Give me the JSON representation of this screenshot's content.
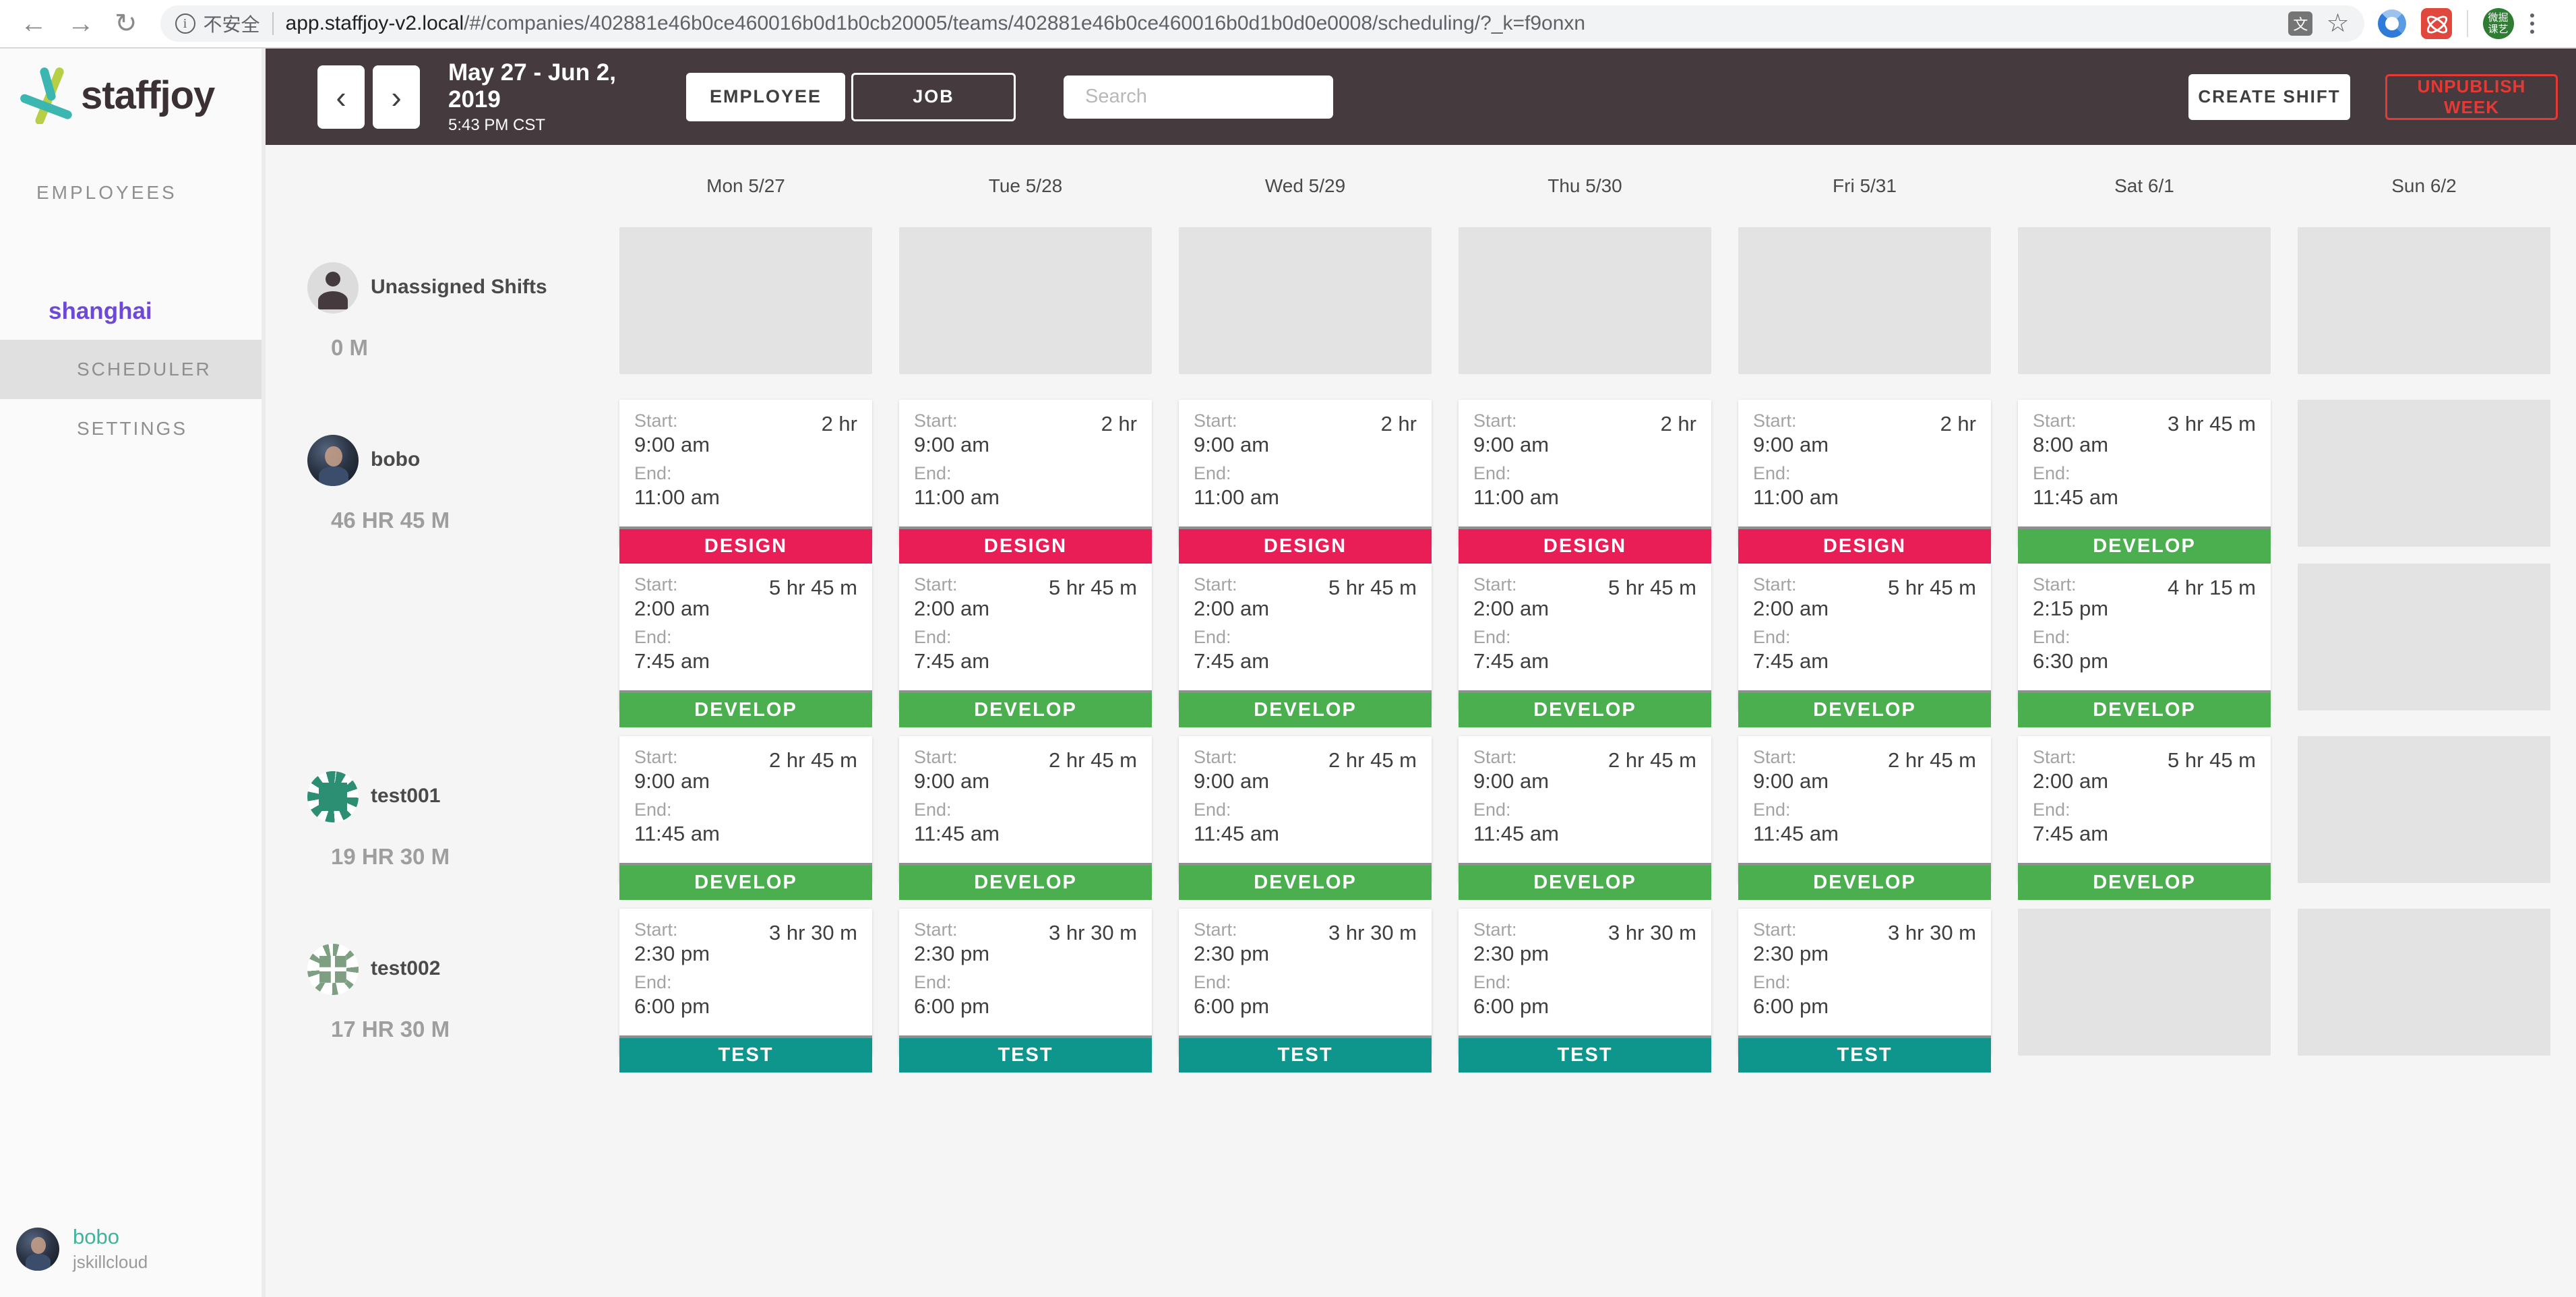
{
  "browser": {
    "back_icon": "←",
    "forward_icon": "→",
    "reload_icon": "↻",
    "security_label": "不安全",
    "url_host": "app.staffjoy-v2.local",
    "url_path": "/#/companies/402881e46b0ce460016b0d1b0cb20005/teams/402881e46b0ce460016b0d1b0d0e0008/scheduling/?_k=f9onxn",
    "ext_green_line1": "微掘",
    "ext_green_line2": "课艺"
  },
  "sidebar": {
    "logo_text": "staffjoy",
    "employees_label": "EMPLOYEES",
    "team_name": "shanghai",
    "scheduler_label": "SCHEDULER",
    "settings_label": "SETTINGS",
    "user": {
      "name": "bobo",
      "org": "jskillcloud"
    }
  },
  "header": {
    "date_range": "May 27 - Jun 2, 2019",
    "time": "5:43 PM CST",
    "employee_toggle": "EMPLOYEE",
    "job_toggle": "JOB",
    "search_placeholder": "Search",
    "create_shift": "CREATE SHIFT",
    "unpublish_week": "UNPUBLISH WEEK"
  },
  "calendar": {
    "days": [
      "Mon 5/27",
      "Tue 5/28",
      "Wed 5/29",
      "Thu 5/30",
      "Fri 5/31",
      "Sat 6/1",
      "Sun 6/2"
    ],
    "start_label": "Start:",
    "end_label": "End:",
    "jobs": {
      "design": {
        "label": "DESIGN",
        "color": "#e91e57"
      },
      "develop": {
        "label": "DEVELOP",
        "color": "#4bae4f"
      },
      "test": {
        "label": "TEST",
        "color": "#0e968c"
      }
    },
    "rows": [
      {
        "name": "Unassigned Shifts",
        "hours": "0 M",
        "avatar": "person",
        "cells": [
          [
            {
              "empty": true
            }
          ],
          [
            {
              "empty": true
            }
          ],
          [
            {
              "empty": true
            }
          ],
          [
            {
              "empty": true
            }
          ],
          [
            {
              "empty": true
            }
          ],
          [
            {
              "empty": true
            }
          ],
          [
            {
              "empty": true
            }
          ]
        ]
      },
      {
        "name": "bobo",
        "hours": "46 HR 45 M",
        "avatar": "photo",
        "cells": [
          [
            {
              "start": "9:00 am",
              "end": "11:00 am",
              "duration": "2 hr",
              "job": "design"
            },
            {
              "start": "2:00 am",
              "end": "7:45 am",
              "duration": "5 hr 45 m",
              "job": "develop"
            }
          ],
          [
            {
              "start": "9:00 am",
              "end": "11:00 am",
              "duration": "2 hr",
              "job": "design"
            },
            {
              "start": "2:00 am",
              "end": "7:45 am",
              "duration": "5 hr 45 m",
              "job": "develop"
            }
          ],
          [
            {
              "start": "9:00 am",
              "end": "11:00 am",
              "duration": "2 hr",
              "job": "design"
            },
            {
              "start": "2:00 am",
              "end": "7:45 am",
              "duration": "5 hr 45 m",
              "job": "develop"
            }
          ],
          [
            {
              "start": "9:00 am",
              "end": "11:00 am",
              "duration": "2 hr",
              "job": "design"
            },
            {
              "start": "2:00 am",
              "end": "7:45 am",
              "duration": "5 hr 45 m",
              "job": "develop"
            }
          ],
          [
            {
              "start": "9:00 am",
              "end": "11:00 am",
              "duration": "2 hr",
              "job": "design"
            },
            {
              "start": "2:00 am",
              "end": "7:45 am",
              "duration": "5 hr 45 m",
              "job": "develop"
            }
          ],
          [
            {
              "start": "8:00 am",
              "end": "11:45 am",
              "duration": "3 hr 45 m",
              "job": "develop"
            },
            {
              "start": "2:15 pm",
              "end": "6:30 pm",
              "duration": "4 hr 15 m",
              "job": "develop"
            }
          ],
          [
            {
              "empty": true
            },
            {
              "empty": true
            }
          ]
        ]
      },
      {
        "name": "test001",
        "hours": "19 HR 30 M",
        "avatar": "identicon1",
        "cells": [
          [
            {
              "start": "9:00 am",
              "end": "11:45 am",
              "duration": "2 hr 45 m",
              "job": "develop"
            }
          ],
          [
            {
              "start": "9:00 am",
              "end": "11:45 am",
              "duration": "2 hr 45 m",
              "job": "develop"
            }
          ],
          [
            {
              "start": "9:00 am",
              "end": "11:45 am",
              "duration": "2 hr 45 m",
              "job": "develop"
            }
          ],
          [
            {
              "start": "9:00 am",
              "end": "11:45 am",
              "duration": "2 hr 45 m",
              "job": "develop"
            }
          ],
          [
            {
              "start": "9:00 am",
              "end": "11:45 am",
              "duration": "2 hr 45 m",
              "job": "develop"
            }
          ],
          [
            {
              "start": "2:00 am",
              "end": "7:45 am",
              "duration": "5 hr 45 m",
              "job": "develop"
            }
          ],
          [
            {
              "empty": true
            }
          ]
        ]
      },
      {
        "name": "test002",
        "hours": "17 HR 30 M",
        "avatar": "identicon2",
        "cells": [
          [
            {
              "start": "2:30 pm",
              "end": "6:00 pm",
              "duration": "3 hr 30 m",
              "job": "test"
            }
          ],
          [
            {
              "start": "2:30 pm",
              "end": "6:00 pm",
              "duration": "3 hr 30 m",
              "job": "test"
            }
          ],
          [
            {
              "start": "2:30 pm",
              "end": "6:00 pm",
              "duration": "3 hr 30 m",
              "job": "test"
            }
          ],
          [
            {
              "start": "2:30 pm",
              "end": "6:00 pm",
              "duration": "3 hr 30 m",
              "job": "test"
            }
          ],
          [
            {
              "start": "2:30 pm",
              "end": "6:00 pm",
              "duration": "3 hr 30 m",
              "job": "test"
            }
          ],
          [
            {
              "empty": true
            }
          ],
          [
            {
              "empty": true
            }
          ]
        ]
      }
    ]
  }
}
